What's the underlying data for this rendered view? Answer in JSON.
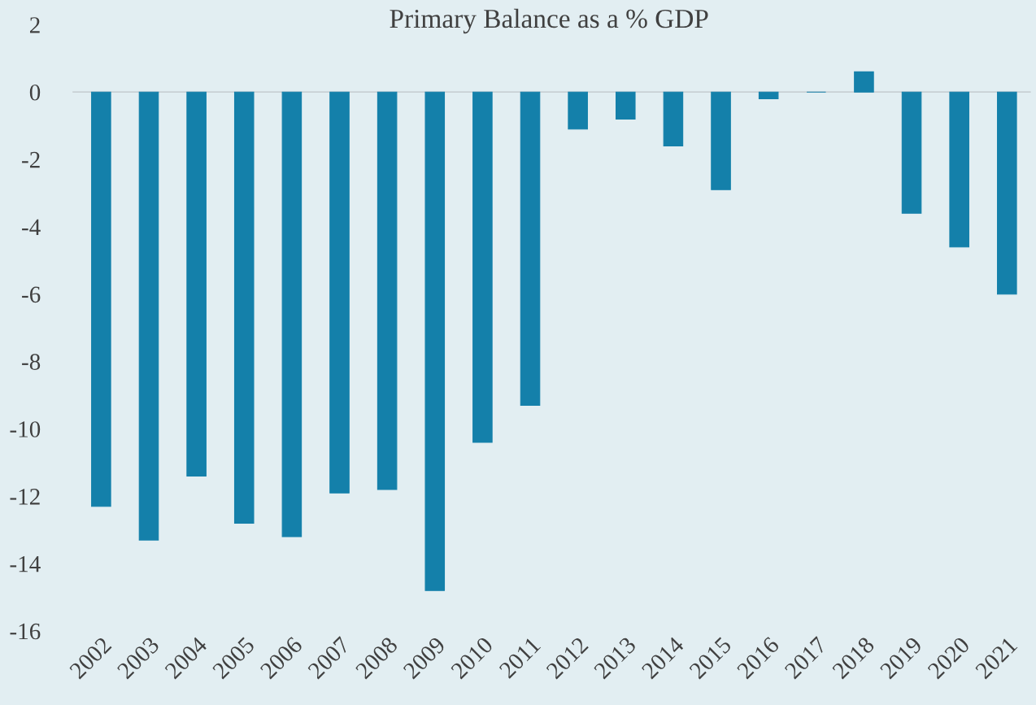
{
  "chart_data": {
    "type": "bar",
    "title": "Primary Balance as a % GDP",
    "categories": [
      "2002",
      "2003",
      "2004",
      "2005",
      "2006",
      "2007",
      "2008",
      "2009",
      "2010",
      "2011",
      "2012",
      "2013",
      "2014",
      "2015",
      "2016",
      "2017",
      "2018",
      "2019",
      "2020",
      "2021"
    ],
    "values": [
      -12.3,
      -13.3,
      -11.4,
      -12.8,
      -13.2,
      -11.9,
      -11.8,
      -14.8,
      -10.4,
      -9.3,
      -1.1,
      -0.8,
      -1.6,
      -2.9,
      -0.2,
      0,
      0.6,
      -3.6,
      -4.6,
      -6.0
    ],
    "color": "#1480aa",
    "ylim": [
      -16,
      2
    ],
    "yticks": [
      -16,
      -14,
      -12,
      -10,
      -8,
      -6,
      -4,
      -2,
      0,
      2
    ],
    "ref_lines": [
      {
        "axis": "y",
        "value": 0,
        "color": "#c8d0d4"
      }
    ],
    "grid": false,
    "legend": false
  }
}
